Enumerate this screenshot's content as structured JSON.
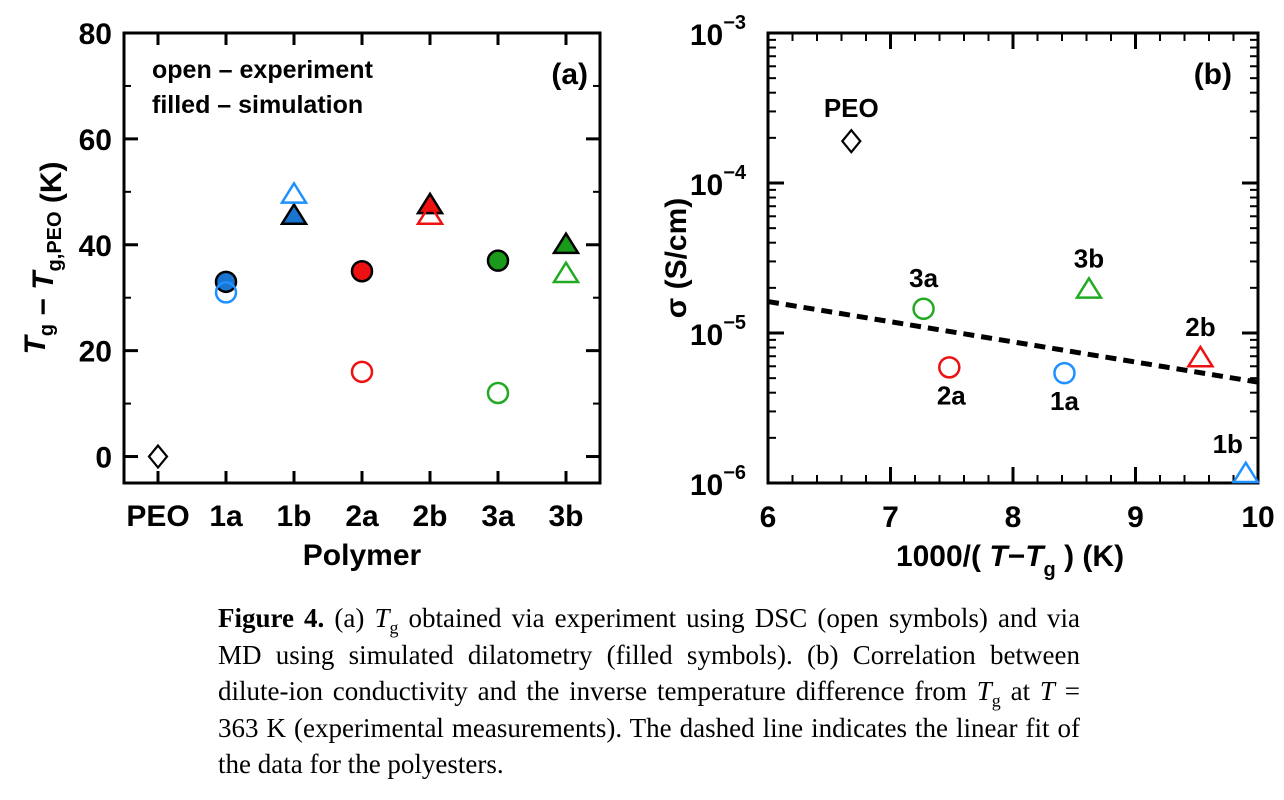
{
  "chart_data": [
    {
      "panel": "(a)",
      "type": "scatter",
      "xlabel": "Polymer",
      "ylabel_parts": [
        "T",
        "g",
        " − ",
        "T",
        "g,PEO",
        " (K)"
      ],
      "ylim": [
        -5,
        80
      ],
      "yticks": [
        0,
        20,
        40,
        60,
        80
      ],
      "categories": [
        "PEO",
        "1a",
        "1b",
        "2a",
        "2b",
        "3a",
        "3b"
      ],
      "legend_lines": [
        "open  – experiment",
        "filled  – simulation"
      ],
      "points": [
        {
          "label": "PEO",
          "category": "PEO",
          "y": 0,
          "marker": "diamond",
          "color": "#000000",
          "filled": false
        },
        {
          "label": "1a",
          "category": "1a",
          "y": 33,
          "marker": "circle",
          "color": "#1a75d1",
          "filled": true
        },
        {
          "label": "1a",
          "category": "1a",
          "y": 31,
          "marker": "circle",
          "color": "#1e90ff",
          "filled": false
        },
        {
          "label": "1b",
          "category": "1b",
          "y": 45.5,
          "marker": "triangle",
          "color": "#1a75d1",
          "filled": true
        },
        {
          "label": "1b",
          "category": "1b",
          "y": 49.5,
          "marker": "triangle",
          "color": "#1e90ff",
          "filled": false
        },
        {
          "label": "2a",
          "category": "2a",
          "y": 35,
          "marker": "circle",
          "color": "#ee1111",
          "filled": true
        },
        {
          "label": "2a",
          "category": "2a",
          "y": 16,
          "marker": "circle",
          "color": "#ee1111",
          "filled": false
        },
        {
          "label": "2b",
          "category": "2b",
          "y": 47.5,
          "marker": "triangle",
          "color": "#ee1111",
          "filled": true
        },
        {
          "label": "2b",
          "category": "2b",
          "y": 45.5,
          "marker": "triangle",
          "color": "#ee1111",
          "filled": false
        },
        {
          "label": "3a",
          "category": "3a",
          "y": 37,
          "marker": "circle",
          "color": "#1a9a1a",
          "filled": true
        },
        {
          "label": "3a",
          "category": "3a",
          "y": 12,
          "marker": "circle",
          "color": "#22aa22",
          "filled": false
        },
        {
          "label": "3b",
          "category": "3b",
          "y": 40,
          "marker": "triangle",
          "color": "#1a9a1a",
          "filled": true
        },
        {
          "label": "3b",
          "category": "3b",
          "y": 34.5,
          "marker": "triangle",
          "color": "#22aa22",
          "filled": false
        }
      ]
    },
    {
      "panel": "(b)",
      "type": "scatter",
      "xlabel_parts": [
        "1000/( ",
        "T",
        "−",
        "T",
        "g",
        " ) (K)"
      ],
      "ylabel": "σ (S/cm)",
      "xlim": [
        6,
        10
      ],
      "xticks": [
        6,
        7,
        8,
        9,
        10
      ],
      "yscale": "log",
      "ylim": [
        1e-06,
        0.001
      ],
      "yticks": [
        {
          "base": "10",
          "exp": "−3"
        },
        {
          "base": "10",
          "exp": "−4"
        },
        {
          "base": "10",
          "exp": "−5"
        },
        {
          "base": "10",
          "exp": "−6"
        }
      ],
      "points": [
        {
          "label": "PEO",
          "x": 6.68,
          "y": 0.00019,
          "marker": "diamond",
          "color": "#000000",
          "filled": false
        },
        {
          "label": "3a",
          "x": 7.27,
          "y": 1.45e-05,
          "marker": "circle",
          "color": "#22aa22",
          "filled": false
        },
        {
          "label": "2a",
          "x": 7.48,
          "y": 5.9e-06,
          "marker": "circle",
          "color": "#ee1111",
          "filled": false
        },
        {
          "label": "1a",
          "x": 8.42,
          "y": 5.4e-06,
          "marker": "circle",
          "color": "#1e90ff",
          "filled": false
        },
        {
          "label": "3b",
          "x": 8.62,
          "y": 1.95e-05,
          "marker": "triangle",
          "color": "#22aa22",
          "filled": false
        },
        {
          "label": "2b",
          "x": 9.53,
          "y": 6.8e-06,
          "marker": "triangle",
          "color": "#ee1111",
          "filled": false
        },
        {
          "label": "1b",
          "x": 9.9,
          "y": 1.15e-06,
          "marker": "triangle",
          "color": "#1e90ff",
          "filled": false
        }
      ],
      "fit_line": {
        "style": "dashed",
        "x": [
          6,
          10
        ],
        "y": [
          1.62e-05,
          4.7e-06
        ]
      }
    }
  ],
  "caption": {
    "label": "Figure 4.",
    "lines": [
      " (a) ",
      "T",
      "g",
      " obtained via experiment using DSC (open symbols) and via MD using simulated dilatometry (filled symbols). (b) Correlation between dilute-ion conductivity and the inverse temperature difference from ",
      "T",
      "g",
      " at ",
      "T",
      " = 363 K (experimental measurements). The dashed line indicates the linear fit of the data for the polyesters."
    ]
  }
}
